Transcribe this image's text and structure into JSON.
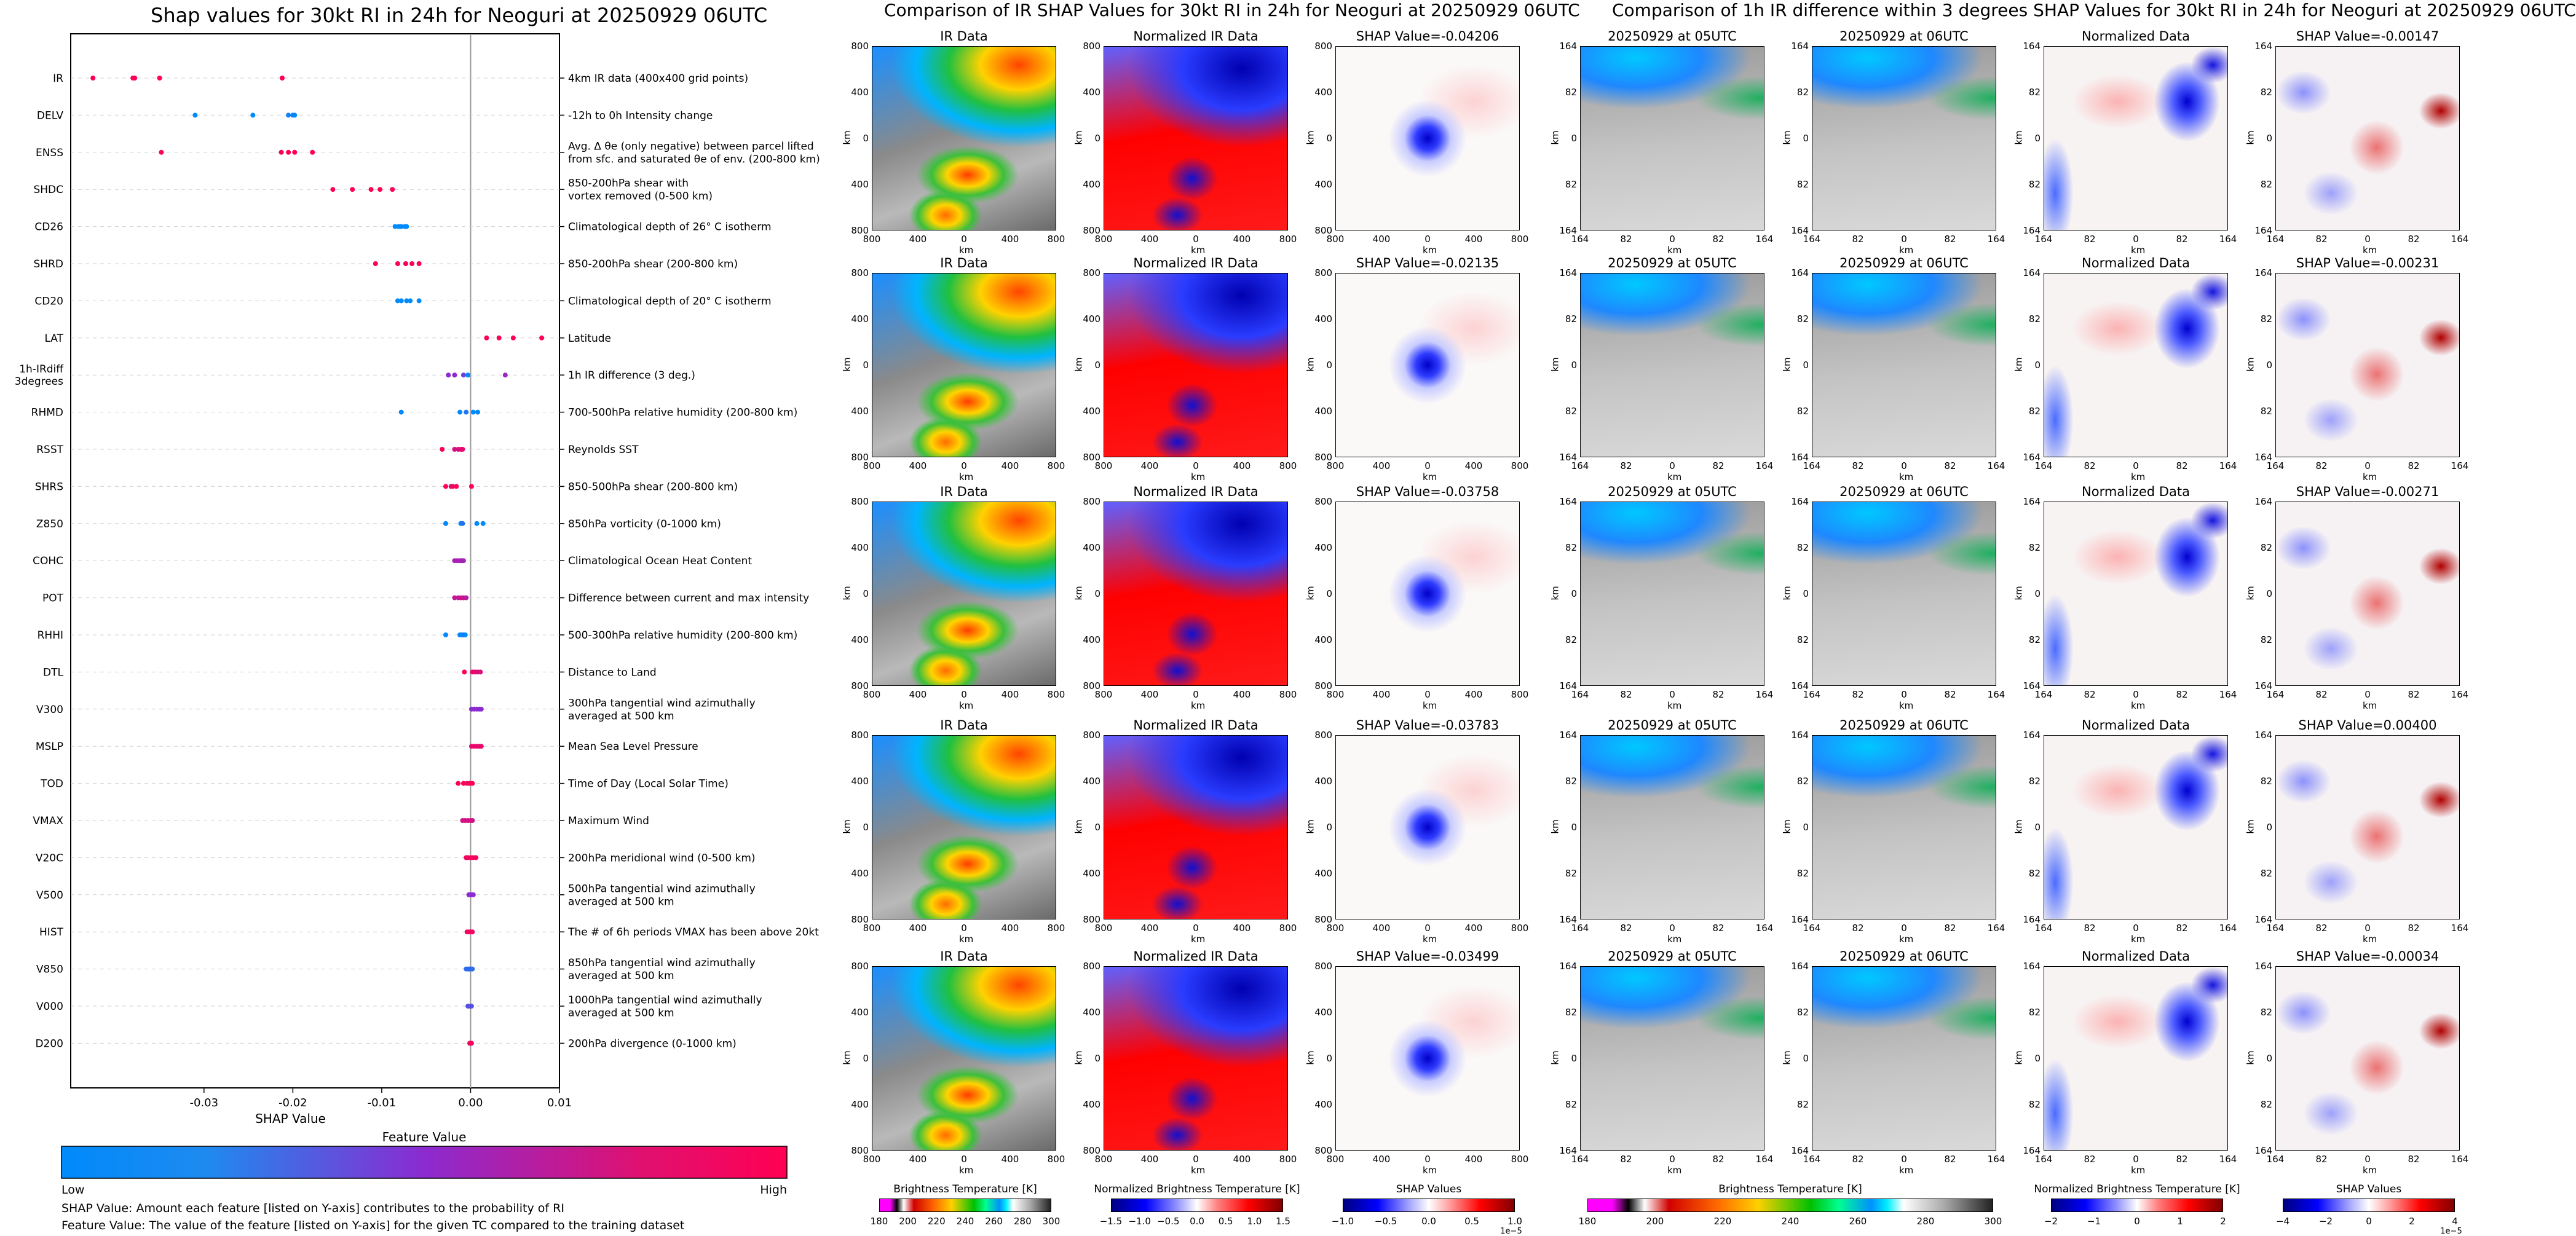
{
  "titles": {
    "left": "Shap values for 30kt RI in 24h for Neoguri at 20250929 06UTC",
    "middle": "Comparison of IR SHAP Values for 30kt RI in 24h for Neoguri at 20250929 06UTC",
    "right": "Comparison of 1h IR difference within 3 degrees SHAP Values for 30kt RI in 24h for Neoguri at 20250929 06UTC"
  },
  "colors": {
    "low": "#008afb",
    "mid": "#8b2bd0",
    "high": "#ff0052"
  },
  "chart_data": [
    {
      "type": "scatter",
      "title": "Shap values for 30kt RI in 24h for Neoguri at 20250929 06UTC",
      "xlabel": "SHAP Value",
      "xlim": [
        -0.045,
        0.01
      ],
      "xticks": [
        "-0.03",
        "-0.02",
        "-0.01",
        "0.00",
        "0.01"
      ],
      "xtick_values": [
        -0.03,
        -0.02,
        -0.01,
        0.0,
        0.01
      ],
      "colorbar": {
        "label": "Feature Value",
        "low": "Low",
        "high": "High"
      },
      "footnotes": [
        "SHAP Value: Amount each feature [listed on Y-axis] contributes to the probability of RI",
        "Feature Value: The value of the feature [listed on Y-axis] for the given TC compared to the training dataset"
      ],
      "features": [
        {
          "name": "IR",
          "desc": [
            "4km IR data (400x400 grid points)"
          ],
          "points": [
            [
              -0.0425,
              1
            ],
            [
              -0.038,
              1
            ],
            [
              -0.0378,
              1
            ],
            [
              -0.035,
              1
            ],
            [
              -0.0212,
              1
            ]
          ]
        },
        {
          "name": "DELV",
          "desc": [
            "-12h to 0h Intensity change"
          ],
          "points": [
            [
              -0.031,
              0
            ],
            [
              -0.0245,
              0
            ],
            [
              -0.0205,
              0.05
            ],
            [
              -0.02,
              0.05
            ],
            [
              -0.0198,
              0
            ]
          ]
        },
        {
          "name": "ENSS",
          "desc": [
            "Avg. Δ θe (only negative) between parcel lifted",
            "from sfc. and saturated θe of env. (200-800 km)"
          ],
          "points": [
            [
              -0.0348,
              1
            ],
            [
              -0.0213,
              1
            ],
            [
              -0.0205,
              1
            ],
            [
              -0.0198,
              1
            ],
            [
              -0.0178,
              1
            ]
          ]
        },
        {
          "name": "SHDC",
          "desc": [
            "850-200hPa shear with",
            "vortex removed (0-500 km)"
          ],
          "points": [
            [
              -0.0155,
              1
            ],
            [
              -0.0133,
              1
            ],
            [
              -0.0112,
              1
            ],
            [
              -0.0102,
              1
            ],
            [
              -0.0088,
              1
            ]
          ]
        },
        {
          "name": "CD26",
          "desc": [
            "Climatological depth of 26° C isotherm"
          ],
          "points": [
            [
              -0.0085,
              0
            ],
            [
              -0.0081,
              0
            ],
            [
              -0.0078,
              0
            ],
            [
              -0.0074,
              0
            ],
            [
              -0.0072,
              0
            ]
          ]
        },
        {
          "name": "SHRD",
          "desc": [
            "850-200hPa shear (200-800 km)"
          ],
          "points": [
            [
              -0.0107,
              1
            ],
            [
              -0.0082,
              1
            ],
            [
              -0.0073,
              1
            ],
            [
              -0.0066,
              1
            ],
            [
              -0.0058,
              1
            ]
          ]
        },
        {
          "name": "CD20",
          "desc": [
            "Climatological depth of 20° C isotherm"
          ],
          "points": [
            [
              -0.0082,
              0
            ],
            [
              -0.0078,
              0
            ],
            [
              -0.0072,
              0
            ],
            [
              -0.0068,
              0
            ],
            [
              -0.0058,
              0
            ]
          ]
        },
        {
          "name": "LAT",
          "desc": [
            "Latitude"
          ],
          "points": [
            [
              0.0018,
              1
            ],
            [
              0.0032,
              1
            ],
            [
              0.0048,
              1
            ],
            [
              0.008,
              1
            ]
          ]
        },
        {
          "name": "1h-IRdiff\n3degrees",
          "desc": [
            "1h IR difference (3 deg.)"
          ],
          "points": [
            [
              -0.0025,
              0.5
            ],
            [
              -0.0018,
              0.5
            ],
            [
              -0.0008,
              0.4
            ],
            [
              -0.0003,
              0
            ],
            [
              0.0039,
              0.55
            ]
          ]
        },
        {
          "name": "RHMD",
          "desc": [
            "700-500hPa relative humidity (200-800 km)"
          ],
          "points": [
            [
              -0.0078,
              0
            ],
            [
              -0.0012,
              0
            ],
            [
              -0.0005,
              0.1
            ],
            [
              0.0003,
              0
            ],
            [
              0.0008,
              0
            ]
          ]
        },
        {
          "name": "RSST",
          "desc": [
            "Reynolds SST"
          ],
          "points": [
            [
              -0.0032,
              1
            ],
            [
              -0.0018,
              0.8
            ],
            [
              -0.0014,
              0.85
            ],
            [
              -0.0011,
              0.8
            ],
            [
              -0.0009,
              0.9
            ]
          ]
        },
        {
          "name": "SHRS",
          "desc": [
            "850-500hPa shear (200-800 km)"
          ],
          "points": [
            [
              -0.0028,
              1
            ],
            [
              -0.0022,
              0.9
            ],
            [
              -0.002,
              0.9
            ],
            [
              -0.0016,
              1
            ],
            [
              0.0001,
              1
            ]
          ]
        },
        {
          "name": "Z850",
          "desc": [
            "850hPa vorticity (0-1000 km)"
          ],
          "points": [
            [
              -0.0028,
              0
            ],
            [
              -0.0011,
              0
            ],
            [
              -0.0009,
              0.15
            ],
            [
              0.0007,
              0
            ],
            [
              0.0014,
              0
            ]
          ]
        },
        {
          "name": "COHC",
          "desc": [
            "Climatological Ocean Heat Content"
          ],
          "points": [
            [
              -0.0018,
              0.6
            ],
            [
              -0.0015,
              0.65
            ],
            [
              -0.0012,
              0.6
            ],
            [
              -0.001,
              0.62
            ],
            [
              -0.0008,
              0.6
            ]
          ]
        },
        {
          "name": "POT",
          "desc": [
            "Difference between current and max intensity"
          ],
          "points": [
            [
              -0.0018,
              0.75
            ],
            [
              -0.0014,
              0.7
            ],
            [
              -0.0011,
              0.8
            ],
            [
              -0.0008,
              0.75
            ],
            [
              -0.0005,
              0.7
            ]
          ]
        },
        {
          "name": "RHHI",
          "desc": [
            "500-300hPa relative humidity (200-800 km)"
          ],
          "points": [
            [
              -0.0028,
              0
            ],
            [
              -0.0012,
              0
            ],
            [
              -0.001,
              0
            ],
            [
              -0.0008,
              0.1
            ],
            [
              -0.0006,
              0
            ]
          ]
        },
        {
          "name": "DTL",
          "desc": [
            "Distance to Land"
          ],
          "points": [
            [
              -0.0007,
              1
            ],
            [
              0.0002,
              0.9
            ],
            [
              0.0005,
              0.9
            ],
            [
              0.0008,
              0.85
            ],
            [
              0.0011,
              0.85
            ]
          ]
        },
        {
          "name": "V300",
          "desc": [
            "300hPa tangential wind azimuthally",
            "averaged at 500 km"
          ],
          "points": [
            [
              0.0001,
              0.5
            ],
            [
              0.0004,
              0.5
            ],
            [
              0.0007,
              0.5
            ],
            [
              0.001,
              0.5
            ],
            [
              0.0012,
              0.5
            ]
          ]
        },
        {
          "name": "MSLP",
          "desc": [
            "Mean Sea Level Pressure"
          ],
          "points": [
            [
              0.0001,
              0.9
            ],
            [
              0.0004,
              0.9
            ],
            [
              0.0007,
              0.9
            ],
            [
              0.001,
              0.9
            ],
            [
              0.0012,
              0.9
            ]
          ]
        },
        {
          "name": "TOD",
          "desc": [
            "Time of Day (Local Solar Time)"
          ],
          "points": [
            [
              -0.0014,
              1
            ],
            [
              -0.0008,
              1
            ],
            [
              -0.0004,
              0.9
            ],
            [
              -0.0001,
              1
            ],
            [
              0.0002,
              1
            ]
          ]
        },
        {
          "name": "VMAX",
          "desc": [
            "Maximum Wind"
          ],
          "points": [
            [
              -0.0009,
              0.8
            ],
            [
              -0.0006,
              0.8
            ],
            [
              -0.0003,
              0.8
            ],
            [
              0.0,
              0.8
            ],
            [
              0.0002,
              0.8
            ]
          ]
        },
        {
          "name": "V20C",
          "desc": [
            "200hPa meridional wind (0-500 km)"
          ],
          "points": [
            [
              -0.0005,
              0.95
            ],
            [
              -0.0003,
              0.95
            ],
            [
              0.0,
              0.95
            ],
            [
              0.0003,
              0.95
            ],
            [
              0.0006,
              0.95
            ]
          ]
        },
        {
          "name": "V500",
          "desc": [
            "500hPa tangential wind azimuthally",
            "averaged at 500 km"
          ],
          "points": [
            [
              -0.0002,
              0.5
            ],
            [
              0.0,
              0.5
            ],
            [
              0.0002,
              0.5
            ],
            [
              0.0003,
              0.5
            ]
          ]
        },
        {
          "name": "HIST",
          "desc": [
            "The # of 6h periods VMAX has been above 20kt"
          ],
          "points": [
            [
              -0.0004,
              0.95
            ],
            [
              -0.0002,
              0.95
            ],
            [
              0.0,
              0.95
            ],
            [
              0.0002,
              0.95
            ]
          ]
        },
        {
          "name": "V850",
          "desc": [
            "850hPa tangential wind azimuthally",
            "averaged at 500 km"
          ],
          "points": [
            [
              -0.0005,
              0.15
            ],
            [
              -0.0003,
              0.15
            ],
            [
              -0.0001,
              0.2
            ],
            [
              0.0001,
              0.2
            ],
            [
              0.0002,
              0.15
            ]
          ]
        },
        {
          "name": "V000",
          "desc": [
            "1000hPa tangential wind azimuthally",
            "averaged at 500 km"
          ],
          "points": [
            [
              -0.0003,
              0.3
            ],
            [
              -0.0001,
              0.3
            ],
            [
              0.0001,
              0.3
            ]
          ]
        },
        {
          "name": "D200",
          "desc": [
            "200hPa divergence (0-1000 km)"
          ],
          "points": [
            [
              -0.0001,
              0.95
            ],
            [
              0.0,
              0.95
            ],
            [
              0.0001,
              0.95
            ]
          ]
        }
      ]
    },
    {
      "type": "heatmap",
      "title": "Comparison of IR SHAP Values for 30kt RI in 24h for Neoguri at 20250929 06UTC",
      "axis_label": "km",
      "xticks": [
        "800",
        "400",
        "0",
        "400",
        "800"
      ],
      "yticks": [
        "800",
        "400",
        "0",
        "400",
        "800"
      ],
      "column_titles": [
        "IR Data",
        "Normalized IR Data"
      ],
      "shap_titles": [
        "SHAP Value=-0.04206",
        "SHAP Value=-0.02135",
        "SHAP Value=-0.03758",
        "SHAP Value=-0.03783",
        "SHAP Value=-0.03499"
      ],
      "shap_values": [
        -0.04206,
        -0.02135,
        -0.03758,
        -0.03783,
        -0.03499
      ],
      "colorbars": [
        {
          "label": "Brightness Temperature [K]",
          "ticks": [
            "180",
            "200",
            "220",
            "240",
            "260",
            "280",
            "300"
          ]
        },
        {
          "label": "Normalized Brightness Temperature [K]",
          "ticks": [
            "−1.5",
            "−1.0",
            "−0.5",
            "0.0",
            "0.5",
            "1.0",
            "1.5"
          ]
        },
        {
          "label": "SHAP Values",
          "ticks": [
            "−1.0",
            "−0.5",
            "0.0",
            "0.5",
            "1.0"
          ],
          "scale": "1e−5"
        }
      ]
    },
    {
      "type": "heatmap",
      "title": "Comparison of 1h IR difference within 3 degrees SHAP Values for 30kt RI in 24h for Neoguri at 20250929 06UTC",
      "axis_label": "km",
      "xticks": [
        "164",
        "82",
        "0",
        "82",
        "164"
      ],
      "yticks": [
        "164",
        "82",
        "0",
        "82",
        "164"
      ],
      "column_titles": [
        "20250929 at 05UTC",
        "20250929 at 06UTC",
        "Normalized Data"
      ],
      "shap_titles": [
        "SHAP Value=-0.00147",
        "SHAP Value=-0.00231",
        "SHAP Value=-0.00271",
        "SHAP Value=0.00400",
        "SHAP Value=-0.00034"
      ],
      "shap_values": [
        -0.00147,
        -0.00231,
        -0.00271,
        0.004,
        -0.00034
      ],
      "colorbars": [
        {
          "label": "Brightness Temperature [K]",
          "ticks": [
            "180",
            "200",
            "220",
            "240",
            "260",
            "280",
            "300"
          ]
        },
        {
          "label": "Normalized Brightness Temperature [K]",
          "ticks": [
            "−2",
            "−1",
            "0",
            "1",
            "2"
          ]
        },
        {
          "label": "SHAP Values",
          "ticks": [
            "−4",
            "−2",
            "0",
            "2",
            "4"
          ],
          "scale": "1e−5"
        }
      ]
    }
  ]
}
